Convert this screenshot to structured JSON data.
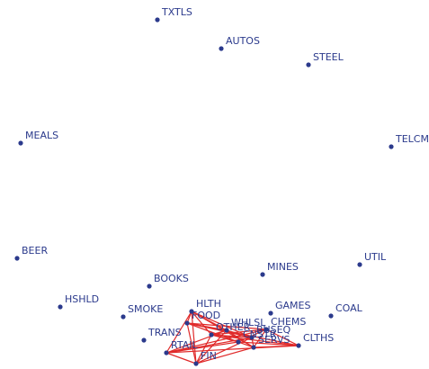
{
  "nodes": [
    {
      "label": "TXTLS"
    },
    {
      "label": "AUTOS"
    },
    {
      "label": "STEEL"
    },
    {
      "label": "MEALS"
    },
    {
      "label": "TELCM"
    },
    {
      "label": "BEER"
    },
    {
      "label": "UTIL"
    },
    {
      "label": "MINES"
    },
    {
      "label": "BOOKS"
    },
    {
      "label": "HSHLD"
    },
    {
      "label": "SMOKE"
    },
    {
      "label": "HLTH"
    },
    {
      "label": "GAMES"
    },
    {
      "label": "COAL"
    },
    {
      "label": "FOOD"
    },
    {
      "label": "TRANS"
    },
    {
      "label": "RTAIL"
    },
    {
      "label": "FIN"
    },
    {
      "label": "CLTHS"
    },
    {
      "label": "SERVS"
    },
    {
      "label": "WHLSL"
    },
    {
      "label": "CHEMS"
    },
    {
      "label": "OTHER"
    },
    {
      "label": "BUSEQ"
    },
    {
      "label": "CNSTR"
    }
  ]
}
